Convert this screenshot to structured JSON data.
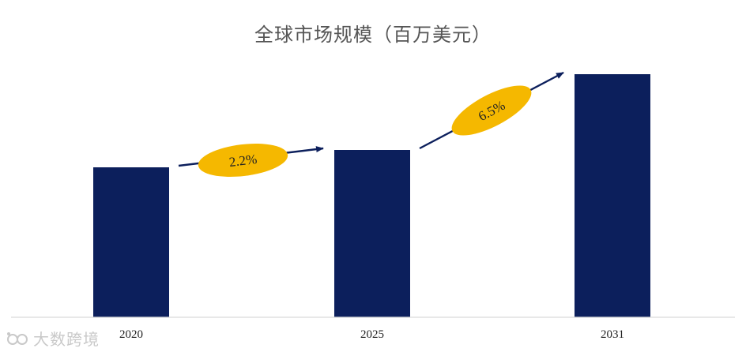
{
  "chart_data": {
    "type": "bar",
    "title": "全球市场规模（百万美元）",
    "categories": [
      "2020",
      "2025",
      "2031"
    ],
    "values": [
      190,
      212,
      308
    ],
    "ylim": [
      0,
      330
    ],
    "grid": false,
    "legend": "none",
    "bar_color": "#0c1f5c",
    "annotations": [
      {
        "from": "2020",
        "to": "2025",
        "label": "2.2%",
        "color": "#f5b800"
      },
      {
        "from": "2025",
        "to": "2031",
        "label": "6.5%",
        "color": "#f5b800"
      }
    ],
    "arrow_color": "#0c1f5c",
    "axis_color": "#d9d9d9"
  },
  "watermark": {
    "text": "大数跨境",
    "icon": "ideas-logo-icon",
    "color": "#c9c9c9"
  }
}
